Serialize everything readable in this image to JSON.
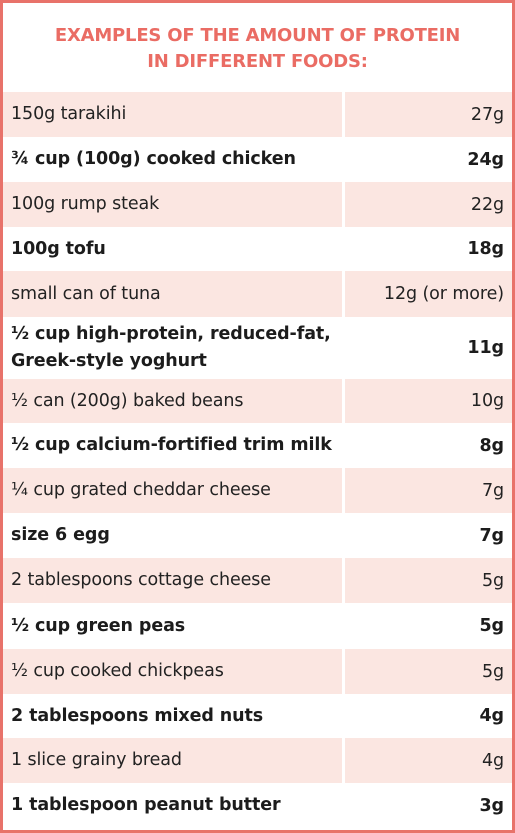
{
  "title": {
    "line1": "EXAMPLES OF THE AMOUNT OF PROTEIN",
    "line2": "IN DIFFERENT FOODS:"
  },
  "colors": {
    "accent": "#ea6c64",
    "row_shade": "#fbe6e1",
    "text": "#222222"
  },
  "rows": [
    {
      "food": "150g tarakihi",
      "amount": "27g",
      "bold": false
    },
    {
      "food": "¾ cup (100g) cooked chicken",
      "amount": "24g",
      "bold": true
    },
    {
      "food": "100g rump steak",
      "amount": "22g",
      "bold": false
    },
    {
      "food": "100g tofu",
      "amount": "18g",
      "bold": true
    },
    {
      "food": "small can of tuna",
      "amount": "12g (or more)",
      "bold": false
    },
    {
      "food": "½ cup high-protein, reduced-fat, Greek-style yoghurt",
      "amount": "11g",
      "bold": true
    },
    {
      "food": "½ can (200g) baked beans",
      "amount": "10g",
      "bold": false
    },
    {
      "food": "½ cup calcium-fortified trim milk",
      "amount": "8g",
      "bold": true
    },
    {
      "food": "¼ cup grated cheddar cheese",
      "amount": "7g",
      "bold": false
    },
    {
      "food": "size 6 egg",
      "amount": "7g",
      "bold": true
    },
    {
      "food": "2 tablespoons cottage cheese",
      "amount": "5g",
      "bold": false
    },
    {
      "food": "½ cup green peas",
      "amount": "5g",
      "bold": true
    },
    {
      "food": "½ cup cooked chickpeas",
      "amount": "5g",
      "bold": false
    },
    {
      "food": "2 tablespoons mixed nuts",
      "amount": "4g",
      "bold": true
    },
    {
      "food": "1 slice grainy bread",
      "amount": "4g",
      "bold": false
    },
    {
      "food": "1 tablespoon peanut butter",
      "amount": "3g",
      "bold": true
    }
  ]
}
